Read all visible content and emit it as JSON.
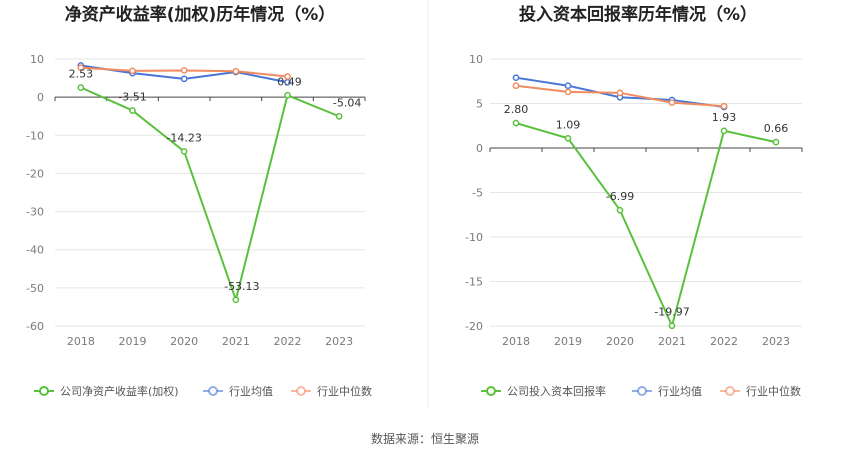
{
  "source": "数据来源：恒生聚源",
  "chart_data": [
    {
      "type": "line",
      "title": "净资产收益率(加权)历年情况（%）",
      "categories": [
        "2018",
        "2019",
        "2020",
        "2021",
        "2022",
        "2023"
      ],
      "ylim": [
        -60,
        10
      ],
      "yticks": [
        10,
        0,
        -10,
        -20,
        -30,
        -40,
        -50,
        -60
      ],
      "grid": true,
      "legend_position": "bottom",
      "series": [
        {
          "name": "公司净资产收益率(加权)",
          "color": "#5ac13c",
          "values": [
            2.53,
            -3.51,
            -14.23,
            -53.13,
            0.49,
            -5.04
          ],
          "labels": [
            "2.53",
            "-3.51",
            "-14.23",
            "-53.13",
            "0.49",
            "-5.04"
          ]
        },
        {
          "name": "行业均值",
          "color": "#4876d6",
          "values": [
            8.3,
            6.3,
            4.8,
            6.6,
            3.9,
            null
          ]
        },
        {
          "name": "行业中位数",
          "color": "#f28b5f",
          "values": [
            7.7,
            6.9,
            7.0,
            6.8,
            5.4,
            null
          ]
        }
      ]
    },
    {
      "type": "line",
      "title": "投入资本回报率历年情况（%）",
      "categories": [
        "2018",
        "2019",
        "2020",
        "2021",
        "2022",
        "2023"
      ],
      "ylim": [
        -20,
        10
      ],
      "yticks": [
        10,
        5,
        0,
        -5,
        -10,
        -15,
        -20
      ],
      "grid": true,
      "legend_position": "bottom",
      "series": [
        {
          "name": "公司投入资本回报率",
          "color": "#5ac13c",
          "values": [
            2.8,
            1.09,
            -6.99,
            -19.97,
            1.93,
            0.66
          ],
          "labels": [
            "2.80",
            "1.09",
            "-6.99",
            "-19.97",
            "1.93",
            "0.66"
          ]
        },
        {
          "name": "行业均值",
          "color": "#4876d6",
          "values": [
            7.9,
            7.0,
            5.7,
            5.4,
            4.6,
            null
          ]
        },
        {
          "name": "行业中位数",
          "color": "#f28b5f",
          "values": [
            7.0,
            6.3,
            6.2,
            5.1,
            4.7,
            null
          ]
        }
      ]
    }
  ]
}
